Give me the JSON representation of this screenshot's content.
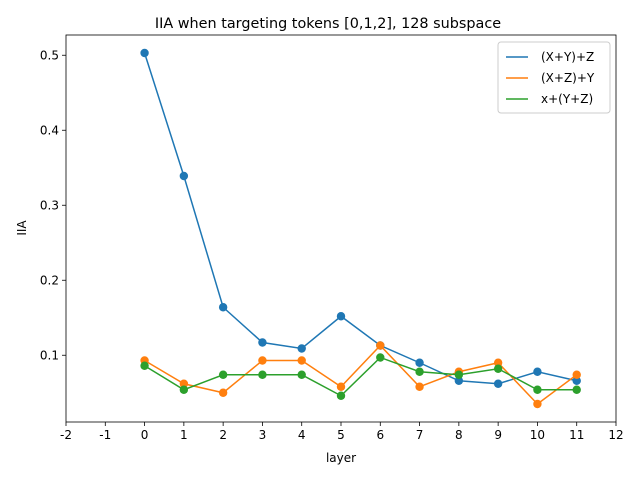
{
  "chart_data": {
    "type": "line",
    "title": "IIA when targeting tokens [0,1,2], 128 subspace",
    "xlabel": "layer",
    "ylabel": "IIA",
    "xlim": [
      -2,
      12
    ],
    "ylim": [
      0.011,
      0.527
    ],
    "x_ticks": [
      "-2",
      "-1",
      "0",
      "1",
      "2",
      "3",
      "4",
      "5",
      "6",
      "7",
      "8",
      "9",
      "10",
      "11",
      "12"
    ],
    "y_ticks": [
      "0.1",
      "0.2",
      "0.3",
      "0.4",
      "0.5"
    ],
    "x": [
      0,
      1,
      2,
      3,
      4,
      5,
      6,
      7,
      8,
      9,
      10,
      11
    ],
    "grid": false,
    "legend_position": "top-right",
    "series": [
      {
        "name": "(X+Y)+Z",
        "color": "#1f77b4",
        "values": [
          0.503,
          0.339,
          0.164,
          0.117,
          0.109,
          0.152,
          0.113,
          0.09,
          0.066,
          0.062,
          0.078,
          0.066
        ]
      },
      {
        "name": "(X+Z)+Y",
        "color": "#ff7f0e",
        "values": [
          0.093,
          0.062,
          0.05,
          0.093,
          0.093,
          0.058,
          0.113,
          0.058,
          0.078,
          0.09,
          0.035,
          0.074
        ]
      },
      {
        "name": "x+(Y+Z)",
        "color": "#2ca02c",
        "values": [
          0.086,
          0.054,
          0.074,
          0.074,
          0.074,
          0.046,
          0.097,
          0.078,
          0.074,
          0.082,
          0.054,
          0.054
        ]
      }
    ]
  }
}
